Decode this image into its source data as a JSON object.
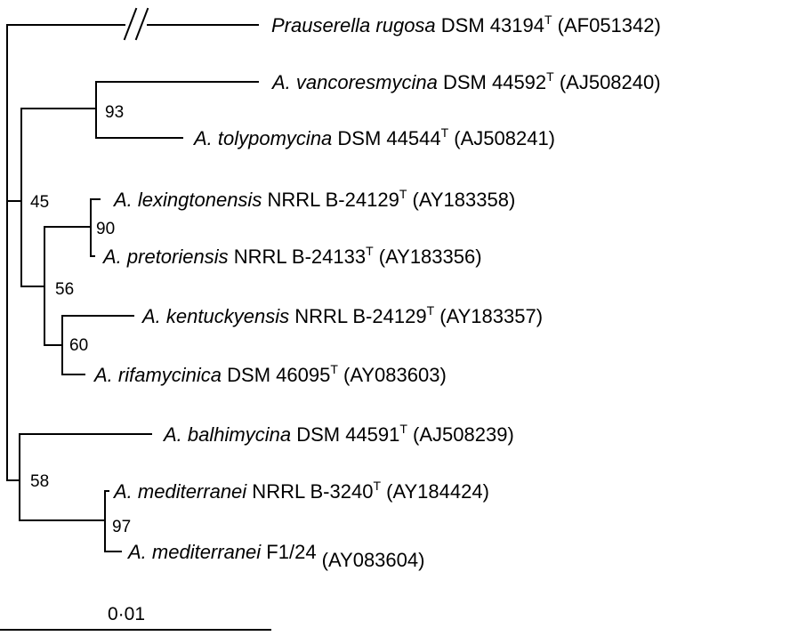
{
  "taxa": [
    {
      "genus": "Prauserella rugosa",
      "strain": " DSM 43194",
      "type_mark": "T",
      "accession": " (AF051342)"
    },
    {
      "genus": "A. vancoresmycina",
      "strain": " DSM 44592",
      "type_mark": "T",
      "accession": " (AJ508240)"
    },
    {
      "genus": "A. tolypomycina",
      "strain": " DSM 44544",
      "type_mark": "T",
      "accession": " (AJ508241)"
    },
    {
      "genus": "A. lexingtonensis",
      "strain": " NRRL B-24129",
      "type_mark": "T",
      "accession": " (AY183358)"
    },
    {
      "genus": "A. pretoriensis",
      "strain": " NRRL B-24133",
      "type_mark": "T",
      "accession": " (AY183356)"
    },
    {
      "genus": "A. kentuckyensis",
      "strain": " NRRL B-24129",
      "type_mark": "T",
      "accession": " (AY183357)"
    },
    {
      "genus": "A. rifamycinica",
      "strain": " DSM 46095",
      "type_mark": "T",
      "accession": " (AY083603)"
    },
    {
      "genus": "A. balhimycina",
      "strain": " DSM 44591",
      "type_mark": "T",
      "accession": " (AJ508239)"
    },
    {
      "genus": "A. mediterranei",
      "strain": " NRRL B-3240",
      "type_mark": "T",
      "accession": " (AY184424)"
    },
    {
      "genus": "A. mediterranei",
      "strain": " F1/24",
      "type_mark": "",
      "accession": " (AY083604)"
    }
  ],
  "bootstrap": {
    "n93": "93",
    "n45": "45",
    "n90": "90",
    "n56": "56",
    "n60": "60",
    "n58": "58",
    "n97": "97"
  },
  "scale_bar": {
    "label": "0·01"
  }
}
